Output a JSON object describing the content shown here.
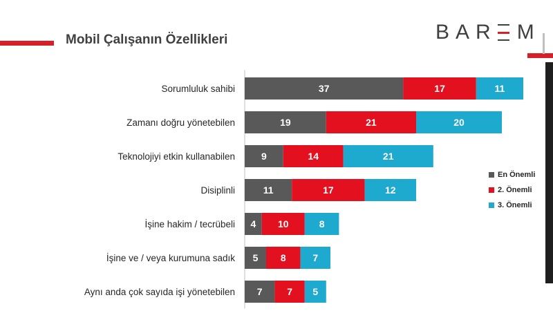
{
  "header": {
    "title": "Mobil Çalışanın Özellikleri",
    "logo_prefix": "BAR",
    "logo_e": "E",
    "logo_suffix": "M"
  },
  "colors": {
    "accent": "#d61f26",
    "series_1": "#595959",
    "series_2": "#e3101f",
    "series_3": "#1ea9cf"
  },
  "chart_data": {
    "type": "bar",
    "orientation": "horizontal",
    "stacked": true,
    "title": "Mobil Çalışanın Özellikleri",
    "categories": [
      "Sorumluluk sahibi",
      "Zamanı doğru yönetebilen",
      "Teknolojiyi etkin kullanabilen",
      "Disiplinli",
      "İşine hakim / tecrübeli",
      "İşine ve / veya kurumuna sadık",
      "Aynı anda çok sayıda işi yönetebilen"
    ],
    "series": [
      {
        "name": "En Önemli",
        "color": "#595959",
        "values": [
          37,
          19,
          9,
          11,
          4,
          5,
          7
        ]
      },
      {
        "name": "2. Önemli",
        "color": "#e3101f",
        "values": [
          17,
          21,
          14,
          17,
          10,
          8,
          7
        ]
      },
      {
        "name": "3. Önemli",
        "color": "#1ea9cf",
        "values": [
          11,
          20,
          21,
          12,
          8,
          7,
          5
        ]
      }
    ],
    "data_labels": true,
    "legend": "right",
    "grid": false
  }
}
